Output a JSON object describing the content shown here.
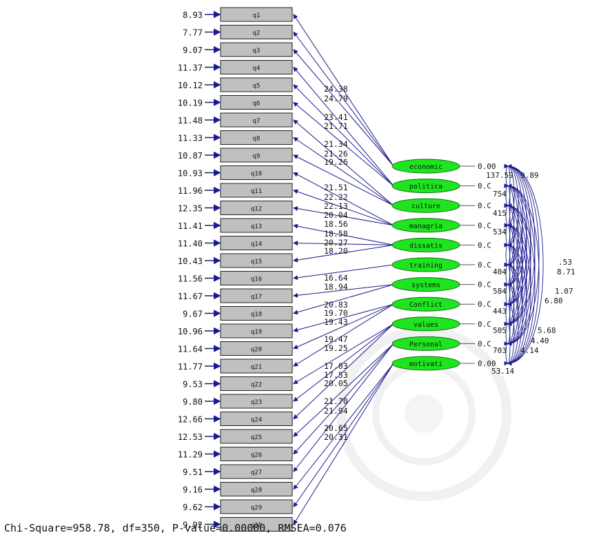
{
  "title_partial": "",
  "observed": [
    {
      "label": "q1",
      "error": "8.93"
    },
    {
      "label": "q2",
      "error": "7.77"
    },
    {
      "label": "q3",
      "error": "9.07"
    },
    {
      "label": "q4",
      "error": "11.37"
    },
    {
      "label": "q5",
      "error": "10.12"
    },
    {
      "label": "q6",
      "error": "10.19"
    },
    {
      "label": "q7",
      "error": "11.48"
    },
    {
      "label": "q8",
      "error": "11.33"
    },
    {
      "label": "q9",
      "error": "10.87"
    },
    {
      "label": "q10",
      "error": "10.93"
    },
    {
      "label": "q11",
      "error": "11.96"
    },
    {
      "label": "q12",
      "error": "12.35"
    },
    {
      "label": "q13",
      "error": "11.41"
    },
    {
      "label": "q14",
      "error": "11.40"
    },
    {
      "label": "q15",
      "error": "10.43"
    },
    {
      "label": "q16",
      "error": "11.56"
    },
    {
      "label": "q17",
      "error": "11.67"
    },
    {
      "label": "q18",
      "error": "9.67"
    },
    {
      "label": "q19",
      "error": "10.96"
    },
    {
      "label": "q20",
      "error": "11.64"
    },
    {
      "label": "q21",
      "error": "11.77"
    },
    {
      "label": "q22",
      "error": "9.53"
    },
    {
      "label": "q23",
      "error": "9.80"
    },
    {
      "label": "q24",
      "error": "12.66"
    },
    {
      "label": "q25",
      "error": "12.53"
    },
    {
      "label": "q26",
      "error": "11.29"
    },
    {
      "label": "q27",
      "error": "9.51"
    },
    {
      "label": "q28",
      "error": "9.16"
    },
    {
      "label": "q29",
      "error": "9.62"
    },
    {
      "label": "q30",
      "error": "9.92"
    }
  ],
  "latent": [
    {
      "label": "economic",
      "var": "0.00"
    },
    {
      "label": "politica",
      "var": "0.C"
    },
    {
      "label": "culture",
      "var": "0.C"
    },
    {
      "label": "managria",
      "var": "0.C"
    },
    {
      "label": "dissatis",
      "var": "0.C"
    },
    {
      "label": "training",
      "var": "0.C"
    },
    {
      "label": "systems",
      "var": "0.C"
    },
    {
      "label": "Conflict",
      "var": "0.C"
    },
    {
      "label": "values",
      "var": "0.C"
    },
    {
      "label": "Personal",
      "var": "0.C"
    },
    {
      "label": "motivati",
      "var": "0.00"
    }
  ],
  "loadings": [
    {
      "from": 0,
      "to": 0,
      "value": ""
    },
    {
      "from": 0,
      "to": 1,
      "value": ""
    },
    {
      "from": 0,
      "to": 2,
      "value": ""
    },
    {
      "from": 1,
      "to": 3,
      "value": ""
    },
    {
      "from": 1,
      "to": 4,
      "value": ""
    },
    {
      "from": 1,
      "to": 5,
      "value": ""
    },
    {
      "from": 2,
      "to": 6,
      "value": ""
    },
    {
      "from": 2,
      "to": 7,
      "value": ""
    },
    {
      "from": 2,
      "to": 8,
      "value": ""
    },
    {
      "from": 3,
      "to": 9,
      "value": ""
    },
    {
      "from": 3,
      "to": 10,
      "value": ""
    },
    {
      "from": 3,
      "to": 11,
      "value": ""
    },
    {
      "from": 4,
      "to": 12,
      "value": ""
    },
    {
      "from": 4,
      "to": 13,
      "value": ""
    },
    {
      "from": 4,
      "to": 14,
      "value": ""
    },
    {
      "from": 5,
      "to": 15,
      "value": ""
    },
    {
      "from": 6,
      "to": 16,
      "value": ""
    },
    {
      "from": 6,
      "to": 17,
      "value": ""
    },
    {
      "from": 7,
      "to": 18,
      "value": ""
    },
    {
      "from": 7,
      "to": 19,
      "value": ""
    },
    {
      "from": 7,
      "to": 20,
      "value": ""
    },
    {
      "from": 8,
      "to": 21,
      "value": ""
    },
    {
      "from": 8,
      "to": 22,
      "value": ""
    },
    {
      "from": 8,
      "to": 23,
      "value": ""
    },
    {
      "from": 9,
      "to": 24,
      "value": ""
    },
    {
      "from": 9,
      "to": 25,
      "value": ""
    },
    {
      "from": 9,
      "to": 26,
      "value": ""
    },
    {
      "from": 10,
      "to": 27,
      "value": ""
    },
    {
      "from": 10,
      "to": 28,
      "value": ""
    },
    {
      "from": 10,
      "to": 29,
      "value": ""
    }
  ],
  "loading_labels": [
    "24.38",
    "24.79",
    "23.41",
    "21.71",
    "21.34",
    "21.26",
    "19.26",
    "21.51",
    "22.22",
    "22.13",
    "20.04",
    "18.56",
    "18.58",
    "20.27",
    "18.20",
    "16.64",
    "18.94",
    "20.83",
    "19.70",
    "19.43",
    "19.47",
    "19.25",
    "17.03",
    "17.53",
    "20.05",
    "21.70",
    "21.94",
    "20.65",
    "20.31"
  ],
  "covariance_labels": [
    "137.59",
    "754",
    "415",
    "534",
    "404",
    "584",
    "443",
    "505",
    "703",
    "53.14",
    "9.89",
    ".53",
    "8.71",
    "1.07",
    "6.80",
    "5.68",
    "4.40",
    "4.14"
  ],
  "fit_stats": "Chi-Square=958.78, df=350, P-value=0.00000, RMSEA=0.076",
  "colors": {
    "box_fill": "#c0c0c0",
    "ellipse_fill": "#1ee61e",
    "arrow": "#1a1a8c",
    "text": "#111111",
    "watermark": "#e6e6e6"
  }
}
